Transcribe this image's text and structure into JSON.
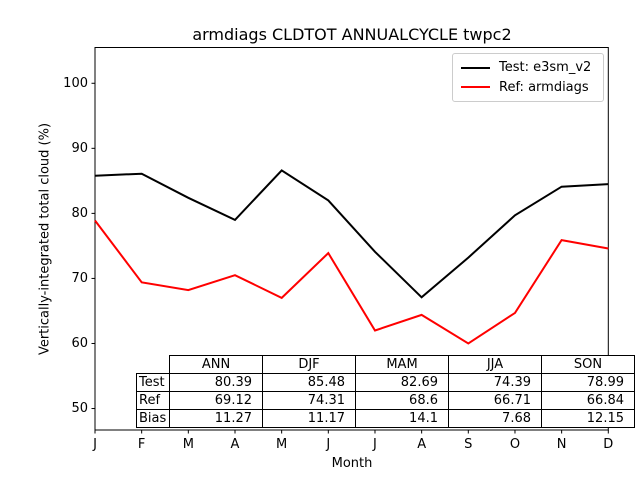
{
  "title": "armdiags CLDTOT ANNUALCYCLE twpc2",
  "axes": {
    "xlabel": "Month",
    "ylabel": "Vertically-integrated total cloud (%)",
    "x_tick_labels": [
      "J",
      "F",
      "M",
      "A",
      "M",
      "J",
      "J",
      "A",
      "S",
      "O",
      "N",
      "D"
    ],
    "y_ticks": [
      50,
      60,
      70,
      80,
      90,
      100
    ],
    "ylim": [
      46.7,
      105.5
    ]
  },
  "legend": {
    "entries": [
      {
        "label": "Test: e3sm_v2",
        "color": "#000000"
      },
      {
        "label": "Ref: armdiags",
        "color": "#ff0000"
      }
    ]
  },
  "chart_data": {
    "type": "line",
    "title": "armdiags CLDTOT ANNUALCYCLE twpc2",
    "xlabel": "Month",
    "ylabel": "Vertically-integrated total cloud (%)",
    "categories": [
      "J",
      "F",
      "M",
      "A",
      "M",
      "J",
      "J",
      "A",
      "S",
      "O",
      "N",
      "D"
    ],
    "ylim": [
      46.7,
      105.5
    ],
    "y_ticks": [
      50,
      60,
      70,
      80,
      90,
      100
    ],
    "grid": false,
    "legend_position": "upper right",
    "series": [
      {
        "name": "Test: e3sm_v2",
        "color": "#000000",
        "values": [
          85.8,
          86.1,
          82.4,
          79.0,
          86.6,
          82.0,
          74.1,
          67.1,
          73.2,
          79.7,
          84.1,
          84.5
        ]
      },
      {
        "name": "Ref: armdiags",
        "color": "#ff0000",
        "values": [
          78.9,
          69.4,
          68.2,
          70.5,
          67.0,
          73.9,
          62.0,
          64.4,
          60.0,
          64.7,
          75.9,
          74.6
        ]
      }
    ],
    "stats_table": {
      "col_headers": [
        "ANN",
        "DJF",
        "MAM",
        "JJA",
        "SON"
      ],
      "rows": [
        {
          "label": "Test",
          "values": [
            "80.39",
            "85.48",
            "82.69",
            "74.39",
            "78.99"
          ]
        },
        {
          "label": "Ref",
          "values": [
            "69.12",
            "74.31",
            "68.6",
            "66.71",
            "66.84"
          ]
        },
        {
          "label": "Bias",
          "values": [
            "11.27",
            "11.17",
            "14.1",
            "7.68",
            "12.15"
          ]
        }
      ]
    }
  }
}
